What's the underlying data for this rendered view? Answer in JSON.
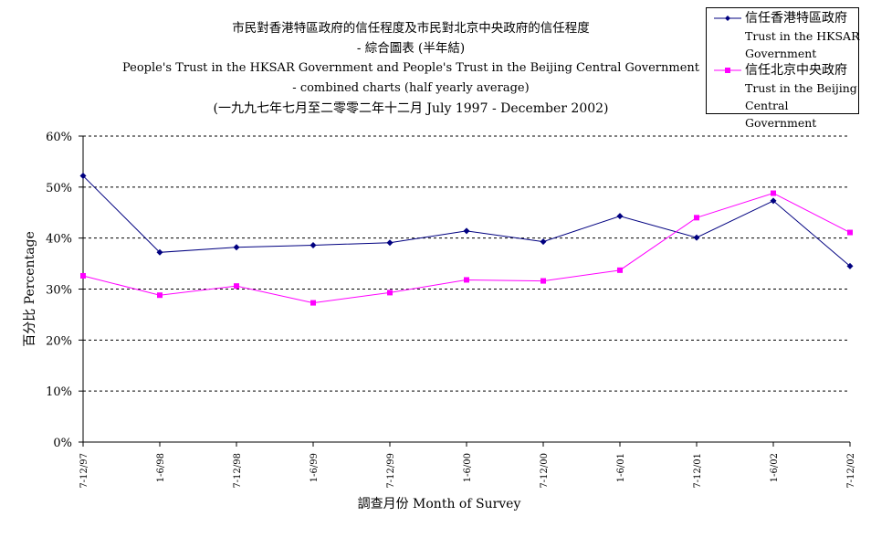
{
  "title": {
    "zh_line1": "市民對香港特區政府的信任程度及市民對北京中央政府的信任程度",
    "zh_line2": "- 綜合圖表 (半年結)",
    "en_line1": "People's Trust in the HKSAR Government and People's Trust in the Beijing Central Government",
    "en_line2": "- combined charts (half yearly average)",
    "range": "(一九九七年七月至二零零二年十二月 July 1997 - December 2002)"
  },
  "legend": {
    "items": [
      {
        "zh": "信任香港特區政府",
        "en1": "Trust in the HKSAR",
        "en2": "Government"
      },
      {
        "zh": "信任北京中央政府",
        "en1": "Trust in the Beijing",
        "en2": "Central Government"
      }
    ]
  },
  "chart_data": {
    "type": "line",
    "title": "市民對香港特區政府的信任程度及市民對北京中央政府的信任程度 - 綜合圖表 (半年結)",
    "xlabel": "調查月份 Month of Survey",
    "ylabel": "百分比 Percentage",
    "categories": [
      "7-12/97",
      "1-6/98",
      "7-12/98",
      "1-6/99",
      "7-12/99",
      "1-6/00",
      "7-12/00",
      "1-6/01",
      "7-12/01",
      "1-6/02",
      "7-12/02"
    ],
    "yticks": [
      "0%",
      "10%",
      "20%",
      "30%",
      "40%",
      "50%",
      "60%"
    ],
    "ylim": [
      0,
      60
    ],
    "grid": true,
    "legend_position": "top-right",
    "series": [
      {
        "name": "信任香港特區政府 Trust in the HKSAR Government",
        "color": "#000080",
        "marker": "diamond",
        "values": [
          52.2,
          37.2,
          38.2,
          38.6,
          39.1,
          41.4,
          39.3,
          44.3,
          40.1,
          47.3,
          34.5
        ]
      },
      {
        "name": "信任北京中央政府 Trust in the Beijing Central Government",
        "color": "#FF00FF",
        "marker": "square",
        "values": [
          32.6,
          28.8,
          30.6,
          27.3,
          29.3,
          31.8,
          31.6,
          33.7,
          44.0,
          48.8,
          41.1
        ]
      }
    ]
  }
}
